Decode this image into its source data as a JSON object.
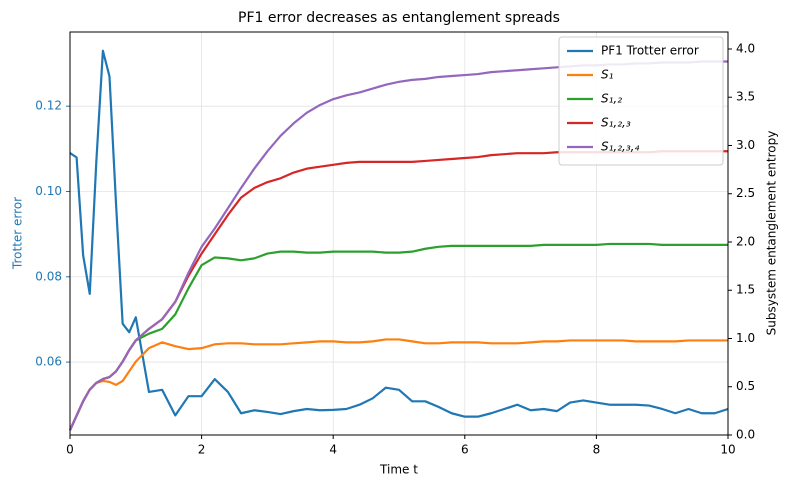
{
  "chart_data": {
    "type": "line",
    "title": "PF1 error decreases as entanglement spreads",
    "x_label": "Time t",
    "y_label": "Trotter error",
    "y2_label": "Subsystem entanglement entropy",
    "x": [
      0,
      0.1,
      0.2,
      0.3,
      0.4,
      0.5,
      0.6,
      0.7,
      0.8,
      0.9,
      1.0,
      1.2,
      1.4,
      1.6,
      1.8,
      2.0,
      2.2,
      2.4,
      2.6,
      2.8,
      3.0,
      3.2,
      3.4,
      3.6,
      3.8,
      4.0,
      4.2,
      4.4,
      4.6,
      4.8,
      5.0,
      5.2,
      5.4,
      5.6,
      5.8,
      6.0,
      6.2,
      6.4,
      6.6,
      6.8,
      7.0,
      7.2,
      7.4,
      7.6,
      7.8,
      8.0,
      8.2,
      8.4,
      8.6,
      8.8,
      9.0,
      9.2,
      9.4,
      9.6,
      9.8,
      10.0
    ],
    "series": [
      {
        "name": "PF1 Trotter error",
        "color": "#1f77b4",
        "axis": "y",
        "values": [
          0.109,
          0.108,
          0.085,
          0.076,
          0.107,
          0.133,
          0.127,
          0.097,
          0.069,
          0.067,
          0.0705,
          0.053,
          0.0535,
          0.0475,
          0.052,
          0.052,
          0.056,
          0.053,
          0.048,
          0.0487,
          0.0483,
          0.0478,
          0.0485,
          0.049,
          0.0487,
          0.0488,
          0.049,
          0.05,
          0.0515,
          0.054,
          0.0535,
          0.0508,
          0.0508,
          0.0495,
          0.048,
          0.0472,
          0.0472,
          0.048,
          0.049,
          0.05,
          0.0487,
          0.049,
          0.0485,
          0.0505,
          0.051,
          0.0505,
          0.05,
          0.05,
          0.05,
          0.0498,
          0.049,
          0.048,
          0.049,
          0.048,
          0.048,
          0.049
        ]
      },
      {
        "name": "S₁",
        "color": "#ff7f0e",
        "axis": "y2",
        "values": [
          0.05,
          0.2,
          0.35,
          0.47,
          0.54,
          0.56,
          0.55,
          0.52,
          0.56,
          0.66,
          0.76,
          0.9,
          0.96,
          0.92,
          0.89,
          0.9,
          0.94,
          0.95,
          0.95,
          0.94,
          0.94,
          0.94,
          0.95,
          0.96,
          0.97,
          0.97,
          0.96,
          0.96,
          0.97,
          0.99,
          0.99,
          0.97,
          0.95,
          0.95,
          0.96,
          0.96,
          0.96,
          0.95,
          0.95,
          0.95,
          0.96,
          0.97,
          0.97,
          0.98,
          0.98,
          0.98,
          0.98,
          0.98,
          0.97,
          0.97,
          0.97,
          0.97,
          0.98,
          0.98,
          0.98,
          0.98
        ]
      },
      {
        "name": "S₁,₂",
        "color": "#2ca02c",
        "axis": "y2",
        "values": [
          0.05,
          0.2,
          0.35,
          0.47,
          0.54,
          0.58,
          0.6,
          0.66,
          0.76,
          0.88,
          0.98,
          1.05,
          1.1,
          1.25,
          1.52,
          1.76,
          1.84,
          1.83,
          1.81,
          1.83,
          1.88,
          1.9,
          1.9,
          1.89,
          1.89,
          1.9,
          1.9,
          1.9,
          1.9,
          1.89,
          1.89,
          1.9,
          1.93,
          1.95,
          1.96,
          1.96,
          1.96,
          1.96,
          1.96,
          1.96,
          1.96,
          1.97,
          1.97,
          1.97,
          1.97,
          1.97,
          1.98,
          1.98,
          1.98,
          1.98,
          1.97,
          1.97,
          1.97,
          1.97,
          1.97,
          1.97
        ]
      },
      {
        "name": "S₁,₂,₃",
        "color": "#d62728",
        "axis": "y2",
        "values": [
          0.05,
          0.2,
          0.35,
          0.47,
          0.54,
          0.58,
          0.6,
          0.66,
          0.76,
          0.88,
          0.98,
          1.1,
          1.2,
          1.38,
          1.65,
          1.88,
          2.08,
          2.28,
          2.46,
          2.56,
          2.62,
          2.66,
          2.72,
          2.76,
          2.78,
          2.8,
          2.82,
          2.83,
          2.83,
          2.83,
          2.83,
          2.83,
          2.84,
          2.85,
          2.86,
          2.87,
          2.88,
          2.9,
          2.91,
          2.92,
          2.92,
          2.92,
          2.93,
          2.93,
          2.93,
          2.93,
          2.93,
          2.93,
          2.93,
          2.93,
          2.94,
          2.94,
          2.94,
          2.94,
          2.94,
          2.94
        ]
      },
      {
        "name": "S₁,₂,₃,₄",
        "color": "#9467bd",
        "axis": "y2",
        "values": [
          0.05,
          0.2,
          0.35,
          0.47,
          0.54,
          0.58,
          0.6,
          0.66,
          0.76,
          0.88,
          0.98,
          1.1,
          1.2,
          1.38,
          1.68,
          1.95,
          2.14,
          2.35,
          2.56,
          2.76,
          2.94,
          3.1,
          3.23,
          3.34,
          3.42,
          3.48,
          3.52,
          3.55,
          3.59,
          3.63,
          3.66,
          3.68,
          3.69,
          3.71,
          3.72,
          3.73,
          3.74,
          3.76,
          3.77,
          3.78,
          3.79,
          3.8,
          3.81,
          3.82,
          3.83,
          3.83,
          3.84,
          3.84,
          3.85,
          3.85,
          3.86,
          3.86,
          3.86,
          3.87,
          3.87,
          3.87
        ]
      }
    ],
    "xlim": [
      0,
      10
    ],
    "xticks": [
      0,
      2,
      4,
      6,
      8,
      10
    ],
    "ylim": [
      0.0429,
      0.1374
    ],
    "yticks": [
      0.06,
      0.08,
      {
        "value": 0.1,
        "label": "0.10"
      },
      0.12
    ],
    "y2lim": [
      0,
      4.176
    ],
    "y2ticks": [
      {
        "value": 0,
        "label": "0.0"
      },
      0.5,
      {
        "value": 1,
        "label": "1.0"
      },
      1.5,
      {
        "value": 2,
        "label": "2.0"
      },
      2.5,
      {
        "value": 3,
        "label": "3.0"
      },
      3.5,
      {
        "value": 4,
        "label": "4.0"
      }
    ],
    "grid": true,
    "legend": "upper right"
  }
}
